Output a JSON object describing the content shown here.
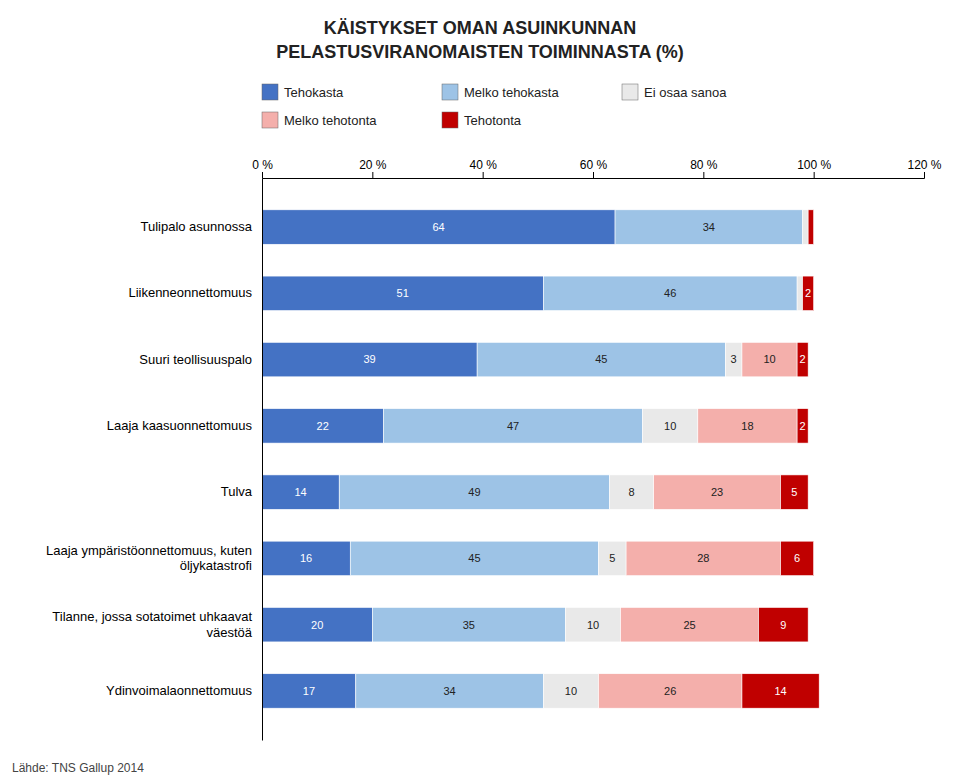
{
  "chart_data": {
    "type": "bar",
    "orientation": "horizontal",
    "stacked": true,
    "data_labels": true,
    "legend": "top",
    "grid": false,
    "title": "KÄISTYKSET OMAN ASUINKUNNAN\nPELASTUSVIRANOMAISTEN TOIMINNASTA (%)",
    "annotations": [
      "Lähde: TNS Gallup 2014"
    ],
    "categories": [
      "Tulipalo asunnossa",
      "Liikenneonnettomuus",
      "Suuri teollisuuspalo",
      "Laaja kaasuonnettomuus",
      "Tulva",
      "Laaja ympäristöonnettomuus, kuten\nöljykatastrofi",
      "Tilanne, jossa sotatoimet uhkaavat\nväestöä",
      "Ydinvoimalaonnettomuus"
    ],
    "series": [
      {
        "name": "Tehokasta",
        "color": "#4472C4",
        "values": [
          64,
          51,
          39,
          22,
          14,
          16,
          20,
          17
        ],
        "value_labels": [
          "64",
          "51",
          "39",
          "22",
          "14",
          "16",
          "20",
          "17"
        ]
      },
      {
        "name": "Melko tehokasta",
        "color": "#9DC3E6",
        "values": [
          34,
          46,
          45,
          47,
          49,
          45,
          35,
          34
        ],
        "value_labels": [
          "34",
          "46",
          "45",
          "47",
          "49",
          "45",
          "35",
          "34"
        ]
      },
      {
        "name": "Ei osaa sanoa",
        "color": "#E9E9E9",
        "values": [
          1,
          1,
          3,
          10,
          8,
          5,
          10,
          10
        ],
        "value_labels": [
          null,
          null,
          "3",
          "10",
          "8",
          "5",
          "10",
          "10"
        ]
      },
      {
        "name": "Melko tehotonta",
        "color": "#F4AFAB",
        "values": [
          0,
          0,
          10,
          18,
          23,
          28,
          25,
          26
        ],
        "value_labels": [
          null,
          null,
          "10",
          "18",
          "23",
          "28",
          "25",
          "26"
        ]
      },
      {
        "name": "Tehotonta",
        "color": "#C00000",
        "values": [
          1,
          2,
          2,
          2,
          5,
          6,
          9,
          14
        ],
        "value_labels": [
          null,
          "2",
          "2",
          "2",
          "5",
          "6",
          "9",
          "14"
        ]
      }
    ],
    "xlim": [
      0,
      120
    ],
    "xticks": [
      {
        "value": 0,
        "label": "0 %"
      },
      {
        "value": 20,
        "label": "20 %"
      },
      {
        "value": 40,
        "label": "40 %"
      },
      {
        "value": 60,
        "label": "60 %"
      },
      {
        "value": 80,
        "label": "80 %"
      },
      {
        "value": 100,
        "label": "100 %"
      },
      {
        "value": 120,
        "label": "120 %"
      }
    ]
  }
}
